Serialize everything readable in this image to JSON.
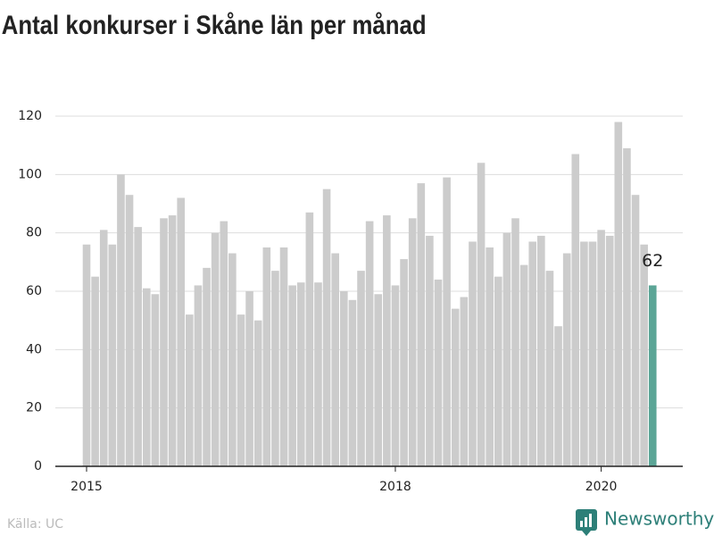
{
  "chart_data": {
    "type": "bar",
    "title": "Antal konkurser i Skåne län per månad",
    "source": "Källa: UC",
    "brand": "Newsworthy",
    "categories": [
      "2015",
      null,
      null,
      null,
      null,
      null,
      null,
      null,
      null,
      null,
      null,
      null,
      null,
      null,
      null,
      null,
      null,
      null,
      null,
      null,
      null,
      null,
      null,
      null,
      null,
      null,
      null,
      null,
      null,
      null,
      null,
      null,
      null,
      null,
      null,
      null,
      "2018",
      null,
      null,
      null,
      null,
      null,
      null,
      null,
      null,
      null,
      null,
      null,
      null,
      null,
      null,
      null,
      null,
      null,
      null,
      null,
      null,
      null,
      null,
      null,
      "2020",
      null,
      null,
      null,
      null,
      null,
      null
    ],
    "values": [
      76,
      65,
      81,
      76,
      100,
      93,
      82,
      61,
      59,
      85,
      86,
      92,
      52,
      62,
      68,
      80,
      84,
      73,
      52,
      60,
      50,
      75,
      67,
      75,
      62,
      63,
      87,
      63,
      95,
      73,
      60,
      57,
      67,
      84,
      59,
      86,
      62,
      71,
      85,
      97,
      79,
      64,
      99,
      54,
      58,
      77,
      104,
      75,
      65,
      80,
      85,
      69,
      77,
      79,
      67,
      48,
      73,
      107,
      77,
      77,
      81,
      79,
      118,
      109,
      93,
      76,
      62
    ],
    "colors": [
      "#cccccc",
      "#cccccc",
      "#cccccc",
      "#cccccc",
      "#cccccc",
      "#cccccc",
      "#cccccc",
      "#cccccc",
      "#cccccc",
      "#cccccc",
      "#cccccc",
      "#cccccc",
      "#cccccc",
      "#cccccc",
      "#cccccc",
      "#cccccc",
      "#cccccc",
      "#cccccc",
      "#cccccc",
      "#cccccc",
      "#cccccc",
      "#cccccc",
      "#cccccc",
      "#cccccc",
      "#cccccc",
      "#cccccc",
      "#cccccc",
      "#cccccc",
      "#cccccc",
      "#cccccc",
      "#cccccc",
      "#cccccc",
      "#cccccc",
      "#cccccc",
      "#cccccc",
      "#cccccc",
      "#cccccc",
      "#cccccc",
      "#cccccc",
      "#cccccc",
      "#cccccc",
      "#cccccc",
      "#cccccc",
      "#cccccc",
      "#cccccc",
      "#cccccc",
      "#cccccc",
      "#cccccc",
      "#cccccc",
      "#cccccc",
      "#cccccc",
      "#cccccc",
      "#cccccc",
      "#cccccc",
      "#cccccc",
      "#cccccc",
      "#cccccc",
      "#cccccc",
      "#cccccc",
      "#cccccc",
      "#cccccc",
      "#cccccc",
      "#cccccc",
      "#cccccc",
      "#cccccc",
      "#cccccc",
      "#5ba596"
    ],
    "label_last": true,
    "ylim": [
      0,
      120
    ],
    "yticks": [
      0,
      20,
      40,
      60,
      80,
      100,
      120
    ],
    "grid": true
  }
}
